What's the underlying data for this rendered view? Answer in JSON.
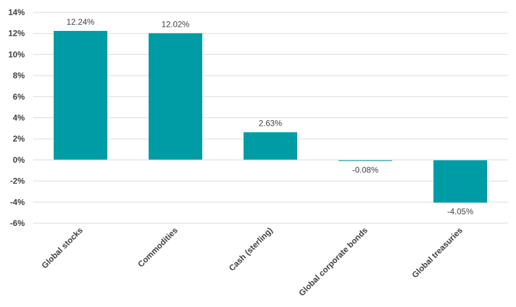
{
  "chart_data": {
    "type": "bar",
    "categories": [
      "Global stocks",
      "Commodities",
      "Cash (sterling)",
      "Global corporate bonds",
      "Global treasuries"
    ],
    "values": [
      12.24,
      12.02,
      2.63,
      -0.08,
      -4.05
    ],
    "data_labels": [
      "12.24%",
      "12.02%",
      "2.63%",
      "-0.08%",
      "-4.05%"
    ],
    "yticks": [
      14,
      12,
      10,
      8,
      6,
      4,
      2,
      0,
      -2,
      -4,
      -6
    ],
    "ytick_labels": [
      "14%",
      "12%",
      "10%",
      "8%",
      "6%",
      "4%",
      "2%",
      "0%",
      "-2%",
      "-4%",
      "-6%"
    ],
    "ylim": [
      -6,
      14
    ],
    "grid": true,
    "legend": "none",
    "bar_color": "#009ca6",
    "title": "",
    "xlabel": "",
    "ylabel": ""
  }
}
